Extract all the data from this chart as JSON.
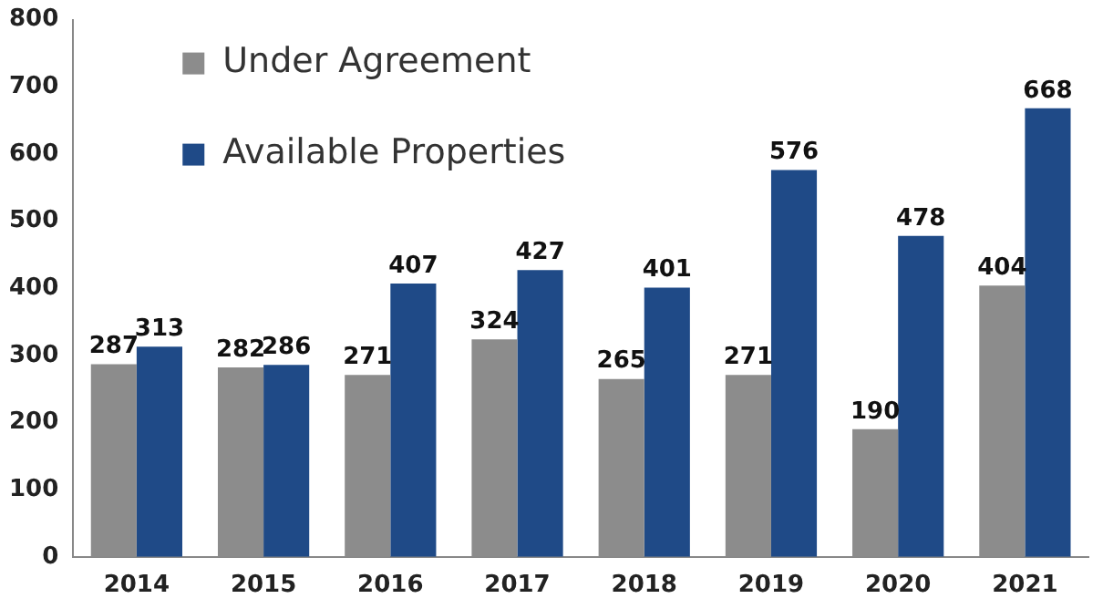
{
  "chart_data": {
    "type": "bar",
    "categories": [
      "2014",
      "2015",
      "2016",
      "2017",
      "2018",
      "2019",
      "2020",
      "2021"
    ],
    "series": [
      {
        "name": "Under Agreement",
        "color": "#8c8c8c",
        "values": [
          287,
          282,
          271,
          324,
          265,
          271,
          190,
          404
        ]
      },
      {
        "name": "Available Properties",
        "color": "#1f4a87",
        "values": [
          313,
          286,
          407,
          427,
          401,
          576,
          478,
          668
        ]
      }
    ],
    "ylim": [
      0,
      800
    ],
    "yticks": [
      0,
      100,
      200,
      300,
      400,
      500,
      600,
      700,
      800
    ],
    "grid": false,
    "legend": "top left",
    "data_labels": true
  }
}
